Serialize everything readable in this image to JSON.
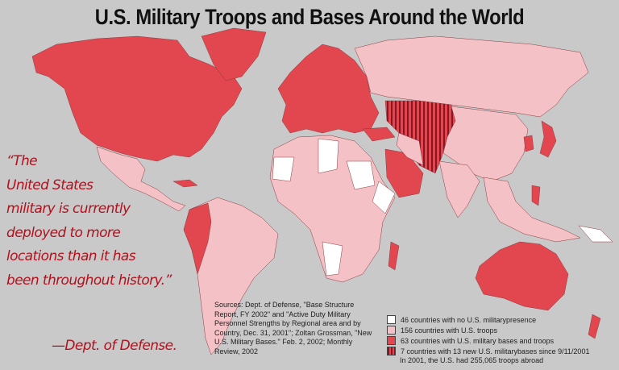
{
  "title": "U.S. Military Troops and Bases Around the World",
  "quote": {
    "lines": [
      "“The",
      "United States",
      "military is currently",
      "deployed to more",
      "locations than it has",
      "been throughout history.”"
    ],
    "attribution": "—Dept. of Defense."
  },
  "sources": "Sources: Dept. of Defense, \"Base Structure Report, FY 2002\" and \"Active Duty Military Personnel Strengths by Regional area and by Country, Dec. 31, 2001\"; Zoltan Grossman, \"New U.S. Military Bases.\" Feb. 2, 2002; Monthly Review, 2002",
  "legend": {
    "items": [
      {
        "label": "46 countries with no U.S. militarypresence",
        "color": "#ffffff"
      },
      {
        "label": "156 countries with U.S. troops",
        "color": "#f4c2c6"
      },
      {
        "label": "63 countries with U.S. military bases and troops",
        "color": "#e2474f"
      },
      {
        "label": "7 countries with 13 new U.S. militarybases since 9/11/2001",
        "color": "#b01c28",
        "pattern": "vertical-stripes"
      }
    ],
    "note": "In 2001, the U.S. had 255,065 troops abroad"
  },
  "colors": {
    "ocean": "#c9c9c9",
    "no_presence": "#ffffff",
    "troops": "#f4c2c6",
    "bases": "#e2474f",
    "new_bases": "#b01c28",
    "quote_text": "#b3101c"
  }
}
